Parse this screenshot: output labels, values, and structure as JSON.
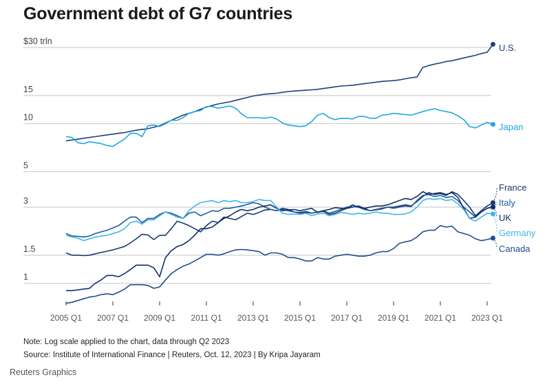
{
  "header": {
    "title": "Government debt of G7 countries"
  },
  "footer": {
    "note": "Note: Log scale applied to the chart, data through Q2 2023",
    "source": "Source: Institute of International Finance | Reuters, Oct. 12, 2023 | By Kripa Jayaram",
    "brand": "Reuters Graphics"
  },
  "chart_data": {
    "type": "line",
    "title": "Government debt of G7 countries",
    "xlabel": "",
    "ylabel": "$ trillion",
    "yscale": "log",
    "ylim": [
      0.68,
      32
    ],
    "grid": true,
    "legend": "direct-labels-right",
    "y_ticks": [
      {
        "value": 30,
        "label": "$30 trln"
      },
      {
        "value": 15,
        "label": "15"
      },
      {
        "value": 10,
        "label": "10"
      },
      {
        "value": 5,
        "label": "5"
      },
      {
        "value": 3,
        "label": "3"
      },
      {
        "value": 1.5,
        "label": "1.5"
      },
      {
        "value": 1,
        "label": "1"
      }
    ],
    "x_start": "2005 Q1",
    "x_end": "2023 Q2",
    "x_ticks": [
      "2005 Q1",
      "2007 Q1",
      "2009 Q1",
      "2011 Q1",
      "2013 Q1",
      "2015 Q1",
      "2017 Q1",
      "2019 Q1",
      "2021 Q1",
      "2023 Q1"
    ],
    "series": [
      {
        "name": "U.S.",
        "color": "#1f3f7a",
        "values": [
          7.8,
          7.9,
          8.0,
          8.1,
          8.2,
          8.3,
          8.4,
          8.5,
          8.6,
          8.7,
          8.8,
          8.95,
          9.1,
          9.2,
          9.3,
          9.5,
          9.7,
          10.1,
          10.5,
          10.9,
          11.3,
          11.6,
          11.9,
          12.3,
          12.7,
          13.0,
          13.3,
          13.5,
          13.7,
          14.0,
          14.3,
          14.6,
          14.9,
          15.1,
          15.3,
          15.4,
          15.5,
          15.7,
          15.9,
          16.0,
          16.1,
          16.2,
          16.3,
          16.4,
          16.6,
          16.8,
          17.0,
          17.2,
          17.3,
          17.4,
          17.6,
          17.8,
          18.0,
          18.2,
          18.4,
          18.5,
          18.6,
          18.8,
          19.1,
          19.4,
          19.6,
          22.5,
          23.1,
          23.6,
          24.0,
          24.5,
          24.8,
          25.3,
          25.8,
          26.3,
          26.8,
          27.5,
          28.0,
          31.4
        ]
      },
      {
        "name": "Japan",
        "color": "#1ea7e1",
        "values": [
          8.3,
          8.2,
          7.6,
          7.5,
          7.7,
          7.6,
          7.5,
          7.3,
          7.2,
          7.6,
          8.0,
          8.7,
          8.7,
          8.3,
          9.7,
          9.8,
          9.6,
          10.0,
          10.5,
          10.5,
          10.9,
          11.6,
          11.9,
          12.1,
          12.8,
          12.8,
          12.5,
          12.7,
          12.9,
          12.5,
          11.5,
          10.9,
          10.9,
          10.9,
          10.8,
          11.0,
          10.7,
          10.1,
          9.8,
          9.7,
          9.6,
          9.7,
          10.3,
          11.3,
          11.6,
          10.9,
          10.6,
          10.8,
          10.8,
          10.7,
          11.1,
          11.1,
          10.8,
          10.8,
          11.3,
          11.4,
          11.6,
          11.5,
          11.4,
          11.3,
          11.6,
          11.9,
          12.2,
          12.4,
          12.1,
          11.9,
          11.7,
          11.2,
          10.6,
          9.6,
          9.4,
          9.8,
          10.2,
          9.9
        ]
      },
      {
        "name": "France",
        "color": "#17386f",
        "values": [
          1.55,
          1.5,
          1.5,
          1.49,
          1.5,
          1.53,
          1.56,
          1.59,
          1.62,
          1.66,
          1.7,
          1.79,
          1.9,
          2.03,
          2.01,
          1.88,
          2.0,
          2.0,
          2.2,
          2.45,
          2.38,
          2.3,
          2.2,
          2.1,
          2.3,
          2.45,
          2.4,
          2.6,
          2.55,
          2.5,
          2.62,
          2.75,
          2.7,
          2.78,
          2.88,
          2.9,
          2.85,
          2.95,
          2.9,
          2.8,
          2.75,
          2.78,
          2.75,
          2.8,
          2.82,
          2.7,
          2.75,
          2.85,
          2.95,
          3.0,
          3.05,
          2.95,
          2.85,
          2.9,
          2.95,
          3.0,
          3.0,
          3.05,
          3.1,
          3.05,
          3.25,
          3.5,
          3.7,
          3.6,
          3.65,
          3.55,
          3.75,
          3.6,
          3.3,
          3.0,
          2.65,
          2.85,
          3.05,
          3.2
        ]
      },
      {
        "name": "Italy",
        "color": "#1e5a9c",
        "values": [
          2.05,
          1.98,
          1.97,
          1.95,
          1.98,
          2.05,
          2.1,
          2.15,
          2.22,
          2.3,
          2.45,
          2.6,
          2.6,
          2.4,
          2.55,
          2.55,
          2.7,
          2.8,
          2.75,
          2.65,
          2.55,
          2.75,
          2.8,
          2.65,
          2.75,
          2.85,
          2.82,
          2.95,
          2.95,
          3.0,
          3.05,
          3.12,
          3.2,
          3.15,
          3.0,
          2.9,
          2.85,
          2.9,
          2.85,
          2.8,
          2.78,
          2.82,
          2.75,
          2.8,
          2.85,
          2.75,
          2.82,
          2.9,
          3.0,
          3.02,
          3.0,
          2.9,
          2.85,
          2.88,
          2.92,
          3.0,
          2.95,
          3.0,
          3.05,
          3.02,
          3.3,
          3.55,
          3.6,
          3.5,
          3.55,
          3.45,
          3.5,
          3.3,
          3.0,
          2.8,
          2.6,
          2.8,
          2.95,
          3.02
        ]
      },
      {
        "name": "UK",
        "color": "#0f2f66",
        "values": [
          0.9,
          0.9,
          0.91,
          0.92,
          0.93,
          1.0,
          1.05,
          1.12,
          1.12,
          1.1,
          1.15,
          1.22,
          1.3,
          1.3,
          1.3,
          1.25,
          1.1,
          1.45,
          1.6,
          1.7,
          1.75,
          1.85,
          2.0,
          2.2,
          2.2,
          2.25,
          2.4,
          2.55,
          2.65,
          2.8,
          2.9,
          2.85,
          2.9,
          3.0,
          3.05,
          3.1,
          2.95,
          2.85,
          2.88,
          2.9,
          2.85,
          2.9,
          2.95,
          2.78,
          2.85,
          2.9,
          2.98,
          2.95,
          2.95,
          3.1,
          3.0,
          2.95,
          3.0,
          3.05,
          3.05,
          3.1,
          3.2,
          3.3,
          3.4,
          3.35,
          3.5,
          3.75,
          3.6,
          3.65,
          3.7,
          3.6,
          3.7,
          3.45,
          2.95,
          2.55,
          2.6,
          2.8,
          2.95,
          3.0
        ]
      },
      {
        "name": "Germany",
        "color": "#3fb4ea",
        "values": [
          2.0,
          1.95,
          1.92,
          1.85,
          1.9,
          1.95,
          1.98,
          2.0,
          2.05,
          2.1,
          2.2,
          2.4,
          2.45,
          2.35,
          2.5,
          2.5,
          2.65,
          2.8,
          2.7,
          2.6,
          2.55,
          2.85,
          3.05,
          3.2,
          3.25,
          3.3,
          3.2,
          3.3,
          3.25,
          3.3,
          3.2,
          3.2,
          3.25,
          3.35,
          3.3,
          3.3,
          3.0,
          2.75,
          2.7,
          2.72,
          2.7,
          2.75,
          2.65,
          2.72,
          2.75,
          2.65,
          2.7,
          2.78,
          2.75,
          2.7,
          2.75,
          2.72,
          2.75,
          2.8,
          2.75,
          2.75,
          2.7,
          2.7,
          2.72,
          2.8,
          3.0,
          3.3,
          3.4,
          3.35,
          3.4,
          3.3,
          3.35,
          3.15,
          2.9,
          2.55,
          2.45,
          2.6,
          2.75,
          2.72
        ]
      },
      {
        "name": "Canada",
        "color": "#1c4d8c",
        "values": [
          0.75,
          0.76,
          0.78,
          0.8,
          0.82,
          0.83,
          0.85,
          0.86,
          0.85,
          0.88,
          0.92,
          0.98,
          0.98,
          0.98,
          0.97,
          0.93,
          0.95,
          1.05,
          1.15,
          1.22,
          1.28,
          1.32,
          1.38,
          1.45,
          1.52,
          1.52,
          1.5,
          1.53,
          1.58,
          1.62,
          1.63,
          1.62,
          1.6,
          1.58,
          1.5,
          1.55,
          1.55,
          1.52,
          1.45,
          1.45,
          1.42,
          1.38,
          1.38,
          1.45,
          1.42,
          1.42,
          1.48,
          1.5,
          1.52,
          1.5,
          1.48,
          1.48,
          1.5,
          1.55,
          1.58,
          1.58,
          1.65,
          1.78,
          1.82,
          1.85,
          1.95,
          2.1,
          2.15,
          2.15,
          2.3,
          2.25,
          2.28,
          2.1,
          2.05,
          2.0,
          1.9,
          1.85,
          1.88,
          1.92
        ]
      }
    ],
    "labels": [
      {
        "series": "U.S.",
        "text": "U.S."
      },
      {
        "series": "Japan",
        "text": "Japan"
      },
      {
        "series": "France",
        "text": "France"
      },
      {
        "series": "Italy",
        "text": "Italy"
      },
      {
        "series": "UK",
        "text": "UK"
      },
      {
        "series": "Germany",
        "text": "Germany"
      },
      {
        "series": "Canada",
        "text": "Canada"
      }
    ]
  }
}
